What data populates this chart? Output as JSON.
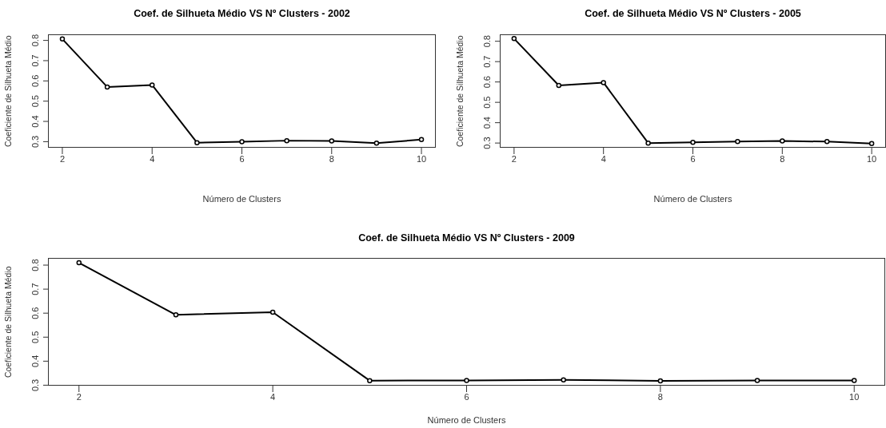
{
  "chart_data": [
    {
      "type": "line",
      "title": "Coef. de Silhueta Médio VS Nº Clusters - 2002",
      "xlabel": "Número de Clusters",
      "ylabel": "Coeficiente de Silhueta Médio",
      "x": [
        2,
        3,
        4,
        5,
        6,
        7,
        8,
        9,
        10
      ],
      "values": [
        0.807,
        0.57,
        0.58,
        0.295,
        0.3,
        0.305,
        0.304,
        0.293,
        0.31
      ],
      "color": "#000000",
      "marker": "circle",
      "line_style": "solid",
      "xlim": [
        1.68,
        10.32
      ],
      "xticks": [
        2,
        4,
        6,
        8,
        10
      ],
      "ylim": [
        0.27,
        0.83
      ],
      "yticks": [
        0.3,
        0.4,
        0.5,
        0.6,
        0.7,
        0.8
      ]
    },
    {
      "type": "line",
      "title": "Coef. de Silhueta Médio VS Nº Clusters - 2005",
      "xlabel": "Número de Clusters",
      "ylabel": "Coeficiente de Silhueta Médio",
      "x": [
        2,
        3,
        4,
        5,
        6,
        7,
        8,
        9,
        10
      ],
      "values": [
        0.813,
        0.583,
        0.597,
        0.3,
        0.303,
        0.307,
        0.31,
        0.307,
        0.298
      ],
      "color": "#000000",
      "marker": "circle",
      "line_style": "solid",
      "xlim": [
        1.68,
        10.32
      ],
      "xticks": [
        2,
        4,
        6,
        8,
        10
      ],
      "ylim": [
        0.277,
        0.834
      ],
      "yticks": [
        0.3,
        0.4,
        0.5,
        0.6,
        0.7,
        0.8
      ]
    },
    {
      "type": "line",
      "title": "Coef. de Silhueta Médio VS Nº Clusters - 2009",
      "xlabel": "Número de Clusters",
      "ylabel": "Coeficiente de Silhueta Médio",
      "x": [
        2,
        3,
        4,
        5,
        6,
        7,
        8,
        9,
        10
      ],
      "values": [
        0.81,
        0.593,
        0.604,
        0.319,
        0.32,
        0.322,
        0.318,
        0.32,
        0.32
      ],
      "color": "#000000",
      "marker": "circle",
      "line_style": "solid",
      "xlim": [
        1.68,
        10.32
      ],
      "xticks": [
        2,
        4,
        6,
        8,
        10
      ],
      "ylim": [
        0.298,
        0.83
      ],
      "yticks": [
        0.3,
        0.4,
        0.5,
        0.6,
        0.7,
        0.8
      ]
    }
  ]
}
